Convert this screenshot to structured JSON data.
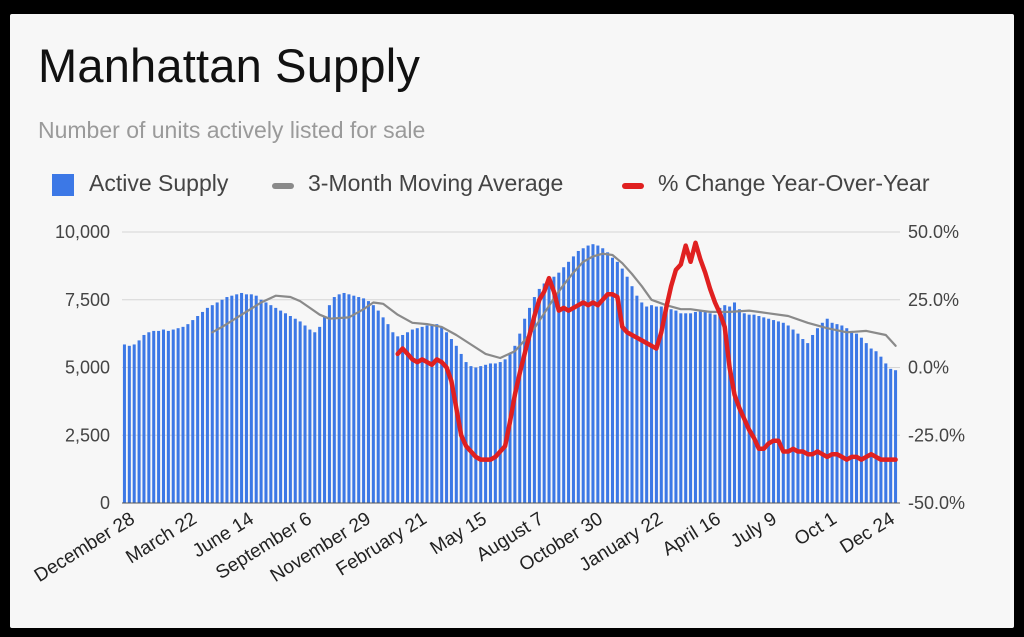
{
  "title": "Manhattan Supply",
  "subtitle": "Number of units actively listed for sale",
  "legend": {
    "active_supply": "Active Supply",
    "moving_average": "3-Month Moving Average",
    "yoy": "% Change Year-Over-Year"
  },
  "colors": {
    "bars": "#3c78e6",
    "moving_average": "#8a8a8a",
    "yoy": "#e02020",
    "grid": "#d6d6d6"
  },
  "chart_data": {
    "type": "bar",
    "title": "Manhattan Supply",
    "subtitle": "Number of units actively listed for sale",
    "ylim_left": [
      0,
      10000
    ],
    "ylim_right": [
      -50,
      50
    ],
    "y_ticks_left": [
      "0",
      "2,500",
      "5,000",
      "7,500",
      "10,000"
    ],
    "y_ticks_right": [
      "-50.0%",
      "-25.0%",
      "0.0%",
      "25.0%",
      "50.0%"
    ],
    "x_tick_labels": [
      "December 28",
      "March 22",
      "June 14",
      "September 6",
      "November 29",
      "February 21",
      "May 15",
      "August 7",
      "October 30",
      "January 22",
      "April 16",
      "July 9",
      "Oct 1",
      "Dec 24"
    ],
    "legend_position": "top",
    "grid": true,
    "series": [
      {
        "name": "Active Supply",
        "type": "bar",
        "axis": "left",
        "values": [
          5850,
          5800,
          5850,
          6000,
          6200,
          6300,
          6350,
          6350,
          6400,
          6350,
          6400,
          6450,
          6500,
          6600,
          6750,
          6900,
          7050,
          7200,
          7300,
          7400,
          7500,
          7600,
          7650,
          7700,
          7750,
          7700,
          7700,
          7650,
          7500,
          7400,
          7300,
          7200,
          7100,
          7000,
          6900,
          6800,
          6700,
          6550,
          6400,
          6300,
          6500,
          6900,
          7300,
          7600,
          7700,
          7750,
          7700,
          7650,
          7600,
          7550,
          7450,
          7300,
          7100,
          6850,
          6600,
          6300,
          6150,
          6200,
          6300,
          6400,
          6450,
          6500,
          6550,
          6600,
          6600,
          6500,
          6300,
          6050,
          5800,
          5500,
          5200,
          5050,
          5000,
          5050,
          5100,
          5150,
          5150,
          5200,
          5300,
          5500,
          5800,
          6250,
          6800,
          7200,
          7600,
          7900,
          8100,
          8200,
          8350,
          8500,
          8700,
          8900,
          9100,
          9300,
          9400,
          9500,
          9550,
          9500,
          9400,
          9250,
          9050,
          8900,
          8650,
          8350,
          8000,
          7650,
          7400,
          7250,
          7300,
          7250,
          7250,
          7200,
          7150,
          7100,
          7000,
          7000,
          7000,
          7050,
          7100,
          7050,
          7000,
          6950,
          7200,
          7300,
          7250,
          7400,
          7150,
          7000,
          6950,
          6950,
          6900,
          6850,
          6800,
          6750,
          6700,
          6650,
          6550,
          6400,
          6250,
          6050,
          5900,
          6200,
          6450,
          6650,
          6800,
          6650,
          6600,
          6550,
          6450,
          6350,
          6250,
          6100,
          5900,
          5700,
          5600,
          5400,
          5150,
          4950,
          4900
        ]
      },
      {
        "name": "3-Month Moving Average",
        "type": "line",
        "axis": "left",
        "x_index": [
          18,
          20,
          24,
          28,
          31,
          34,
          36,
          38,
          40,
          42,
          46,
          49,
          51,
          53,
          56,
          59,
          62,
          65,
          68,
          71,
          74,
          77,
          80,
          82,
          84,
          86,
          88,
          90,
          92,
          94,
          96,
          98,
          100,
          102,
          104,
          106,
          108,
          111,
          114,
          116,
          118,
          120,
          124,
          128,
          132,
          136,
          140,
          144,
          148,
          152,
          156,
          158
        ],
        "values": [
          6300,
          6500,
          6950,
          7400,
          7650,
          7600,
          7450,
          7200,
          6950,
          6800,
          6850,
          7150,
          7400,
          7350,
          6950,
          6650,
          6600,
          6500,
          6200,
          5850,
          5500,
          5350,
          5600,
          6000,
          6450,
          7000,
          7550,
          8050,
          8500,
          8900,
          9100,
          9200,
          9150,
          8850,
          8450,
          8000,
          7500,
          7300,
          7150,
          7150,
          7100,
          7050,
          7050,
          7100,
          7000,
          6900,
          6650,
          6450,
          6300,
          6350,
          6200,
          5800
        ]
      },
      {
        "name": "% Change Year-Over-Year",
        "type": "line",
        "axis": "right",
        "x_index": [
          56,
          57,
          58,
          59,
          60,
          61,
          62,
          63,
          64,
          65,
          66,
          67,
          68,
          69,
          70,
          71,
          72,
          73,
          74,
          75,
          76,
          77,
          78,
          79,
          80,
          81,
          82,
          83,
          84,
          85,
          86,
          87,
          88,
          89,
          90,
          91,
          92,
          93,
          94,
          95,
          96,
          97,
          98,
          99,
          100,
          101,
          102,
          103,
          104,
          105,
          106,
          107,
          108,
          109,
          110,
          111,
          112,
          113,
          114,
          115,
          116,
          117,
          118,
          119,
          120,
          121,
          122,
          123,
          124,
          125,
          126,
          127,
          128,
          129,
          130,
          131,
          132,
          133,
          134,
          135,
          136,
          137,
          138,
          139,
          140,
          141,
          142,
          143,
          144,
          145,
          146,
          147,
          148,
          149,
          150,
          151,
          152,
          153,
          154,
          155,
          156,
          157,
          158
        ],
        "values": [
          5,
          7,
          5,
          3,
          2,
          3,
          2,
          1,
          3,
          2,
          0,
          -5,
          -15,
          -25,
          -29,
          -31,
          -33,
          -34,
          -34,
          -34,
          -33,
          -31,
          -29,
          -20,
          -10,
          -2,
          5,
          12,
          19,
          25,
          28,
          33,
          28,
          21,
          22,
          21,
          22,
          23,
          24,
          23,
          24,
          23,
          25,
          27,
          27,
          26,
          15,
          13,
          12,
          11,
          10,
          9,
          8,
          7,
          13,
          22,
          30,
          36,
          38,
          45,
          39,
          46,
          40,
          35,
          29,
          24,
          20,
          15,
          0,
          -10,
          -15,
          -19,
          -23,
          -26,
          -30,
          -30,
          -28,
          -27,
          -27,
          -31,
          -31,
          -30,
          -31,
          -31,
          -32,
          -32,
          -31,
          -32,
          -33,
          -32,
          -32,
          -33,
          -34,
          -33,
          -33,
          -34,
          -33,
          -32,
          -33,
          -34,
          -34,
          -34,
          -34
        ]
      }
    ]
  }
}
